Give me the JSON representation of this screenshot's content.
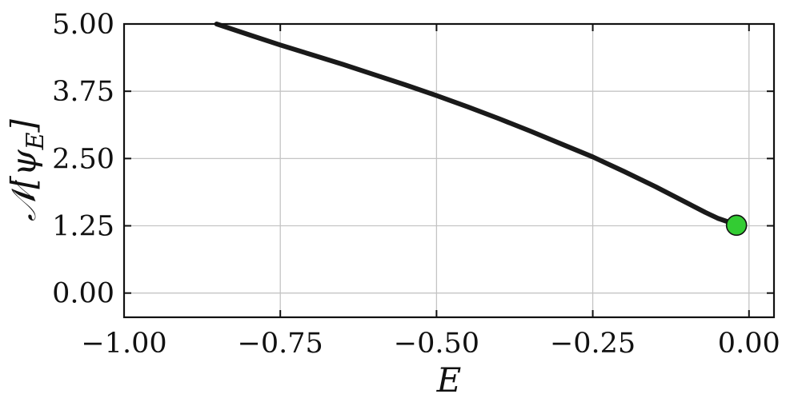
{
  "chart_data": {
    "type": "line",
    "xlabel": "E",
    "ylabel": "𝒩[ψ_E]",
    "ylabel_parts": {
      "main": "𝒩[ψ",
      "sub": "E",
      "close": "]"
    },
    "xlim": [
      -1.0,
      0.04
    ],
    "ylim": [
      -0.45,
      5.0
    ],
    "x_ticks": [
      -1.0,
      -0.75,
      -0.5,
      -0.25,
      0.0
    ],
    "x_tick_labels": [
      "−1.00",
      "−0.75",
      "−0.50",
      "−0.25",
      "0.00"
    ],
    "y_ticks": [
      0.0,
      1.25,
      2.5,
      3.75,
      5.0
    ],
    "y_tick_labels": [
      "0.00",
      "1.25",
      "2.50",
      "3.75",
      "5.00"
    ],
    "grid": true,
    "series": [
      {
        "color": "#1a1a1a",
        "x": [
          -0.852,
          -0.8,
          -0.75,
          -0.7,
          -0.65,
          -0.6,
          -0.55,
          -0.5,
          -0.45,
          -0.4,
          -0.35,
          -0.3,
          -0.25,
          -0.2,
          -0.15,
          -0.1,
          -0.07,
          -0.05,
          -0.035,
          -0.025,
          -0.02
        ],
        "y": [
          5.0,
          4.8,
          4.61,
          4.43,
          4.25,
          4.06,
          3.87,
          3.67,
          3.46,
          3.24,
          3.01,
          2.77,
          2.53,
          2.26,
          1.98,
          1.68,
          1.5,
          1.39,
          1.33,
          1.285,
          1.26
        ]
      }
    ],
    "marker": {
      "x": -0.02,
      "y": 1.26,
      "color": "#33cc33",
      "edge_color": "#111111"
    }
  }
}
